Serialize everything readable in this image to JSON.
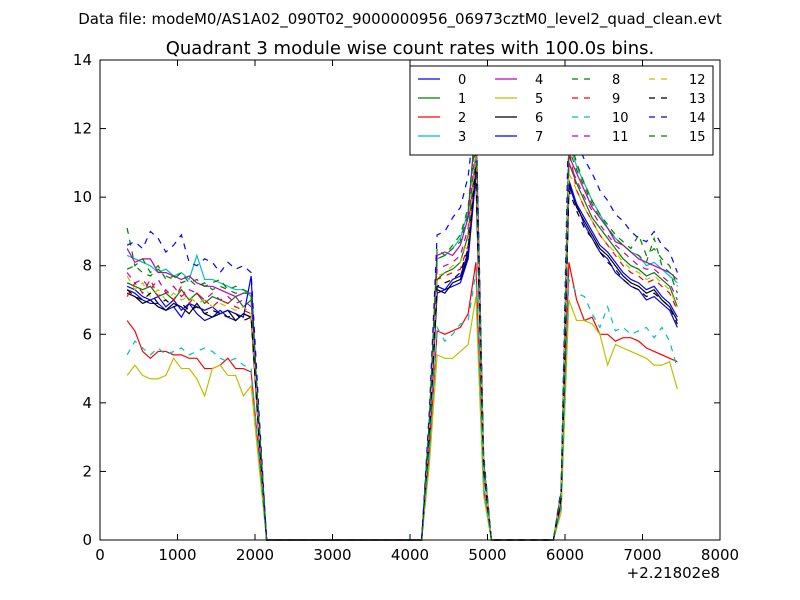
{
  "suptitle": "Data file: modeM0/AS1A02_090T02_9000000956_06973cztM0_level2_quad_clean.evt",
  "chart_data": {
    "type": "line",
    "title": "Quadrant 3 module wise count rates with 100.0s bins.",
    "xlabel": "",
    "ylabel": "",
    "x_offset_label": "+2.21802e8",
    "xlim": [
      0,
      8000
    ],
    "ylim": [
      0,
      14
    ],
    "x_ticks": [
      "0",
      "1000",
      "2000",
      "3000",
      "4000",
      "5000",
      "6000",
      "7000",
      "8000"
    ],
    "y_ticks": [
      "0",
      "2",
      "4",
      "6",
      "8",
      "10",
      "12",
      "14"
    ],
    "grid": false,
    "legend_position": "top-right",
    "legend_columns": 4,
    "x": [
      350,
      450,
      550,
      650,
      750,
      850,
      950,
      1050,
      1150,
      1250,
      1350,
      1450,
      1550,
      1650,
      1750,
      1850,
      1950,
      2050,
      2150,
      2250,
      2350,
      2450,
      2550,
      2650,
      2750,
      2850,
      2950,
      3050,
      3150,
      3250,
      3350,
      3450,
      3550,
      3650,
      3750,
      3850,
      3950,
      4050,
      4150,
      4250,
      4350,
      4450,
      4550,
      4650,
      4750,
      4850,
      4950,
      5050,
      5150,
      5250,
      5350,
      5450,
      5550,
      5650,
      5750,
      5850,
      5950,
      6050,
      6150,
      6250,
      6350,
      6450,
      6550,
      6650,
      6750,
      6850,
      6950,
      7050,
      7150,
      7250,
      7350,
      7450
    ],
    "series": [
      {
        "name": "0",
        "color": "#0000ff",
        "dash": "solid",
        "values": [
          7.3,
          7.2,
          7.0,
          6.9,
          6.9,
          6.7,
          6.8,
          6.5,
          6.9,
          6.6,
          6.4,
          6.5,
          6.7,
          6.5,
          6.4,
          6.6,
          6.5,
          3.0,
          0,
          0,
          0,
          0,
          0,
          0,
          0,
          0,
          0,
          0,
          0,
          0,
          0,
          0,
          0,
          0,
          0,
          0,
          0,
          0,
          0,
          3.0,
          7.2,
          7.3,
          7.4,
          7.5,
          8.2,
          10.6,
          2.0,
          0,
          0,
          0,
          0,
          0,
          0,
          0,
          0,
          0,
          1.2,
          10.5,
          9.8,
          9.2,
          8.8,
          8.4,
          8.2,
          7.8,
          7.6,
          7.4,
          7.3,
          7.0,
          7.1,
          6.9,
          6.7,
          6.2
        ]
      },
      {
        "name": "1",
        "color": "#008000",
        "dash": "solid",
        "values": [
          7.5,
          7.4,
          7.3,
          7.4,
          7.1,
          7.2,
          7.0,
          7.3,
          7.0,
          7.2,
          6.9,
          7.1,
          7.0,
          6.9,
          7.1,
          6.8,
          7.0,
          3.2,
          0,
          0,
          0,
          0,
          0,
          0,
          0,
          0,
          0,
          0,
          0,
          0,
          0,
          0,
          0,
          0,
          0,
          0,
          0,
          0,
          0,
          3.2,
          7.6,
          7.8,
          7.9,
          8.1,
          8.9,
          11.3,
          2.2,
          0,
          0,
          0,
          0,
          0,
          0,
          0,
          0,
          0,
          1.3,
          11.0,
          10.4,
          9.9,
          9.4,
          9.1,
          8.8,
          8.5,
          8.2,
          8.0,
          7.9,
          7.7,
          7.8,
          7.6,
          7.4,
          6.8
        ]
      },
      {
        "name": "2",
        "color": "#ff0000",
        "dash": "solid",
        "values": [
          6.4,
          6.1,
          5.5,
          5.3,
          5.5,
          5.5,
          5.4,
          5.4,
          5.3,
          5.3,
          5.0,
          5.0,
          5.1,
          5.3,
          5.0,
          5.0,
          4.9,
          2.5,
          0,
          0,
          0,
          0,
          0,
          0,
          0,
          0,
          0,
          0,
          0,
          0,
          0,
          0,
          0,
          0,
          0,
          0,
          0,
          0,
          0,
          2.5,
          6.1,
          6.0,
          6.1,
          6.2,
          6.6,
          8.1,
          1.5,
          0,
          0,
          0,
          0,
          0,
          0,
          0,
          0,
          0,
          1.0,
          8.1,
          7.0,
          6.4,
          6.5,
          6.0,
          6.0,
          5.8,
          5.9,
          5.9,
          5.8,
          5.6,
          5.5,
          5.4,
          5.3,
          5.2
        ]
      },
      {
        "name": "3",
        "color": "#00bfbf",
        "dash": "solid",
        "values": [
          8.3,
          8.2,
          8.1,
          8.0,
          7.8,
          7.9,
          7.7,
          7.8,
          7.6,
          8.3,
          7.6,
          7.6,
          7.5,
          7.4,
          7.3,
          7.3,
          7.1,
          3.5,
          0,
          0,
          0,
          0,
          0,
          0,
          0,
          0,
          0,
          0,
          0,
          0,
          0,
          0,
          0,
          0,
          0,
          0,
          0,
          0,
          0,
          3.4,
          8.2,
          8.3,
          8.5,
          8.8,
          9.6,
          12.2,
          2.3,
          0,
          0,
          0,
          0,
          0,
          0,
          0,
          0,
          0,
          1.4,
          11.6,
          10.9,
          10.4,
          9.9,
          9.5,
          9.1,
          8.8,
          8.6,
          8.4,
          8.3,
          8.0,
          8.1,
          7.9,
          7.7,
          7.5
        ]
      },
      {
        "name": "4",
        "color": "#bf00bf",
        "dash": "solid",
        "values": [
          8.5,
          8.1,
          8.2,
          8.2,
          7.8,
          7.8,
          7.7,
          7.6,
          7.7,
          7.5,
          7.4,
          7.4,
          7.3,
          7.2,
          7.1,
          7.2,
          7.2,
          3.4,
          0,
          0,
          0,
          0,
          0,
          0,
          0,
          0,
          0,
          0,
          0,
          0,
          0,
          0,
          0,
          0,
          0,
          0,
          0,
          0,
          0,
          3.5,
          8.3,
          8.4,
          8.3,
          8.6,
          9.4,
          12.3,
          2.3,
          0,
          0,
          0,
          0,
          0,
          0,
          0,
          0,
          0,
          1.4,
          11.2,
          10.7,
          10.2,
          9.7,
          9.4,
          9.1,
          8.7,
          8.6,
          8.4,
          8.2,
          8.1,
          8.0,
          7.9,
          7.8,
          7.6
        ]
      },
      {
        "name": "5",
        "color": "#bfbf00",
        "dash": "solid",
        "values": [
          4.8,
          5.1,
          4.8,
          4.7,
          4.7,
          4.8,
          5.3,
          5.0,
          5.0,
          4.7,
          4.2,
          5.0,
          5.1,
          4.8,
          4.8,
          4.2,
          4.5,
          2.2,
          0,
          0,
          0,
          0,
          0,
          0,
          0,
          0,
          0,
          0,
          0,
          0,
          0,
          0,
          0,
          0,
          0,
          0,
          0,
          0,
          0,
          2.2,
          5.4,
          5.3,
          5.3,
          5.5,
          5.7,
          7.1,
          1.3,
          0,
          0,
          0,
          0,
          0,
          0,
          0,
          0,
          0,
          0.8,
          7.0,
          6.4,
          6.4,
          6.3,
          6.0,
          5.1,
          5.7,
          5.6,
          5.5,
          5.4,
          5.3,
          5.1,
          5.1,
          5.2,
          4.4
        ]
      },
      {
        "name": "6",
        "color": "#000000",
        "dash": "solid",
        "values": [
          7.2,
          7.1,
          6.9,
          7.0,
          6.8,
          6.7,
          6.9,
          6.8,
          6.6,
          6.9,
          6.6,
          6.5,
          6.6,
          6.7,
          6.4,
          6.6,
          6.5,
          3.1,
          0,
          0,
          0,
          0,
          0,
          0,
          0,
          0,
          0,
          0,
          0,
          0,
          0,
          0,
          0,
          0,
          0,
          0,
          0,
          0,
          0,
          3.1,
          7.3,
          7.2,
          7.5,
          7.6,
          8.3,
          10.8,
          2.1,
          0,
          0,
          0,
          0,
          0,
          0,
          0,
          0,
          0,
          1.2,
          10.4,
          9.7,
          9.3,
          8.9,
          8.5,
          8.3,
          8.0,
          7.7,
          7.5,
          7.4,
          7.2,
          7.3,
          7.0,
          6.8,
          6.4
        ]
      },
      {
        "name": "7",
        "color": "#0000ff",
        "dash": "solid",
        "values": [
          7.4,
          7.3,
          7.1,
          7.0,
          7.1,
          6.8,
          7.0,
          6.7,
          6.9,
          6.8,
          6.7,
          6.8,
          6.6,
          6.7,
          6.6,
          6.5,
          7.7,
          3.1,
          0,
          0,
          0,
          0,
          0,
          0,
          0,
          0,
          0,
          0,
          0,
          0,
          0,
          0,
          0,
          0,
          0,
          0,
          0,
          0,
          0,
          3.0,
          7.4,
          7.3,
          7.6,
          7.7,
          8.4,
          10.9,
          2.1,
          0,
          0,
          0,
          0,
          0,
          0,
          0,
          0,
          0,
          1.2,
          10.3,
          9.8,
          9.4,
          9.0,
          8.6,
          8.4,
          8.1,
          7.8,
          7.6,
          7.5,
          7.3,
          7.4,
          7.1,
          6.9,
          6.5
        ]
      },
      {
        "name": "8",
        "color": "#008000",
        "dash": "dashed",
        "values": [
          9.1,
          8.0,
          8.2,
          7.8,
          8.0,
          7.6,
          7.7,
          7.5,
          7.6,
          7.4,
          7.5,
          7.3,
          7.4,
          7.3,
          7.2,
          7.2,
          7.2,
          3.5,
          0,
          0,
          0,
          0,
          0,
          0,
          0,
          0,
          0,
          0,
          0,
          0,
          0,
          0,
          0,
          0,
          0,
          0,
          0,
          0,
          0,
          3.5,
          8.5,
          8.3,
          8.6,
          8.9,
          9.7,
          12.1,
          2.3,
          0,
          0,
          0,
          0,
          0,
          0,
          0,
          0,
          0,
          1.4,
          11.8,
          11.0,
          10.4,
          9.9,
          9.5,
          9.2,
          8.9,
          8.7,
          8.5,
          8.9,
          8.3,
          8.5,
          8.2,
          8.0,
          7.4
        ]
      },
      {
        "name": "9",
        "color": "#ff0000",
        "dash": "dashed",
        "values": [
          7.1,
          7.5,
          7.2,
          7.6,
          7.1,
          7.3,
          7.0,
          7.4,
          6.9,
          7.2,
          7.0,
          6.8,
          7.0,
          6.9,
          6.8,
          6.7,
          6.6,
          3.2,
          0,
          0,
          0,
          0,
          0,
          0,
          0,
          0,
          0,
          0,
          0,
          0,
          0,
          0,
          0,
          0,
          0,
          0,
          0,
          0,
          0,
          3.2,
          7.6,
          7.7,
          7.8,
          7.9,
          8.6,
          11.0,
          2.1,
          0,
          0,
          0,
          0,
          0,
          0,
          0,
          0,
          0,
          1.3,
          11.4,
          10.2,
          9.7,
          9.3,
          8.9,
          8.6,
          8.3,
          8.0,
          7.8,
          7.7,
          7.5,
          7.6,
          7.4,
          7.2,
          6.7
        ]
      },
      {
        "name": "10",
        "color": "#00bfbf",
        "dash": "dashed",
        "values": [
          5.4,
          5.8,
          5.6,
          5.4,
          5.6,
          5.4,
          5.5,
          5.6,
          5.4,
          5.5,
          5.6,
          5.5,
          5.3,
          5.2,
          5.3,
          5.1,
          5.0,
          2.5,
          0,
          0,
          0,
          0,
          0,
          0,
          0,
          0,
          0,
          0,
          0,
          0,
          0,
          0,
          0,
          0,
          0,
          0,
          0,
          0,
          0,
          2.6,
          6.2,
          5.8,
          6.0,
          6.3,
          6.4,
          7.8,
          1.5,
          0,
          0,
          0,
          0,
          0,
          0,
          0,
          0,
          0,
          0.9,
          7.6,
          7.2,
          7.1,
          6.6,
          6.2,
          6.8,
          6.1,
          6.2,
          6.0,
          6.1,
          6.2,
          5.9,
          6.2,
          5.8,
          5.0
        ]
      },
      {
        "name": "11",
        "color": "#bf00bf",
        "dash": "dashed",
        "values": [
          7.8,
          7.5,
          7.6,
          7.3,
          7.6,
          7.2,
          7.4,
          7.1,
          7.3,
          7.2,
          7.0,
          7.2,
          7.0,
          7.1,
          6.9,
          7.0,
          6.8,
          3.3,
          0,
          0,
          0,
          0,
          0,
          0,
          0,
          0,
          0,
          0,
          0,
          0,
          0,
          0,
          0,
          0,
          0,
          0,
          0,
          0,
          0,
          3.3,
          7.9,
          8.0,
          8.1,
          8.3,
          9.1,
          11.6,
          2.2,
          0,
          0,
          0,
          0,
          0,
          0,
          0,
          0,
          0,
          1.3,
          11.0,
          10.5,
          10.0,
          9.6,
          9.2,
          8.9,
          8.6,
          8.4,
          8.2,
          8.0,
          7.9,
          7.9,
          7.7,
          7.5,
          7.0
        ]
      },
      {
        "name": "12",
        "color": "#bfbf00",
        "dash": "dashed",
        "values": [
          7.7,
          7.3,
          7.5,
          7.1,
          7.3,
          7.0,
          7.2,
          7.0,
          7.1,
          6.9,
          7.0,
          6.8,
          6.9,
          6.8,
          6.7,
          6.8,
          6.6,
          3.2,
          0,
          0,
          0,
          0,
          0,
          0,
          0,
          0,
          0,
          0,
          0,
          0,
          0,
          0,
          0,
          0,
          0,
          0,
          0,
          0,
          0,
          3.2,
          7.7,
          7.8,
          8.0,
          8.1,
          8.8,
          11.2,
          2.1,
          0,
          0,
          0,
          0,
          0,
          0,
          0,
          0,
          0,
          1.3,
          10.7,
          10.2,
          9.7,
          9.3,
          8.9,
          8.6,
          8.4,
          8.1,
          7.9,
          7.8,
          7.6,
          7.7,
          7.5,
          7.3,
          6.8
        ]
      },
      {
        "name": "13",
        "color": "#000000",
        "dash": "dashed",
        "values": [
          7.3,
          7.1,
          7.0,
          7.2,
          6.9,
          7.0,
          6.8,
          6.9,
          6.7,
          6.8,
          6.6,
          6.7,
          6.6,
          6.5,
          6.6,
          6.4,
          6.5,
          3.1,
          0,
          0,
          0,
          0,
          0,
          0,
          0,
          0,
          0,
          0,
          0,
          0,
          0,
          0,
          0,
          0,
          0,
          0,
          0,
          0,
          0,
          3.1,
          7.4,
          7.5,
          7.6,
          7.8,
          8.5,
          10.9,
          2.0,
          0,
          0,
          0,
          0,
          0,
          0,
          0,
          0,
          0,
          1.2,
          10.2,
          9.6,
          9.1,
          8.8,
          8.4,
          8.1,
          7.9,
          7.6,
          7.4,
          7.3,
          7.1,
          7.2,
          7.0,
          6.8,
          6.3
        ]
      },
      {
        "name": "14",
        "color": "#0000ff",
        "dash": "dashed",
        "values": [
          8.6,
          8.7,
          8.5,
          9.0,
          8.8,
          8.4,
          8.6,
          8.9,
          8.1,
          8.0,
          8.2,
          8.1,
          7.8,
          8.1,
          7.9,
          8.0,
          7.8,
          3.8,
          0,
          0,
          0,
          0,
          0,
          0,
          0,
          0,
          0,
          0,
          0,
          0,
          0,
          0,
          0,
          0,
          0,
          0,
          0,
          0,
          0,
          3.8,
          8.9,
          9.0,
          9.4,
          9.7,
          10.6,
          12.6,
          2.5,
          0,
          0,
          0,
          0,
          0,
          0,
          0,
          0,
          0,
          1.5,
          12.8,
          11.6,
          11.1,
          10.7,
          10.2,
          9.9,
          9.5,
          9.3,
          9.0,
          8.8,
          8.7,
          9.0,
          8.6,
          8.4,
          7.8
        ]
      },
      {
        "name": "15",
        "color": "#008000",
        "dash": "dashed",
        "values": [
          7.9,
          8.0,
          7.8,
          7.7,
          7.9,
          7.7,
          7.6,
          7.8,
          7.5,
          7.6,
          7.4,
          7.5,
          7.6,
          7.3,
          7.4,
          7.3,
          7.2,
          3.5,
          0,
          0,
          0,
          0,
          0,
          0,
          0,
          0,
          0,
          0,
          0,
          0,
          0,
          0,
          0,
          0,
          0,
          0,
          0,
          0,
          0,
          3.4,
          8.2,
          8.3,
          8.5,
          8.7,
          9.5,
          11.9,
          2.3,
          0,
          0,
          0,
          0,
          0,
          0,
          0,
          0,
          0,
          1.4,
          11.4,
          10.8,
          10.3,
          9.8,
          9.4,
          9.1,
          8.8,
          8.6,
          8.4,
          8.3,
          8.1,
          8.8,
          8.0,
          7.8,
          7.2
        ]
      }
    ]
  }
}
